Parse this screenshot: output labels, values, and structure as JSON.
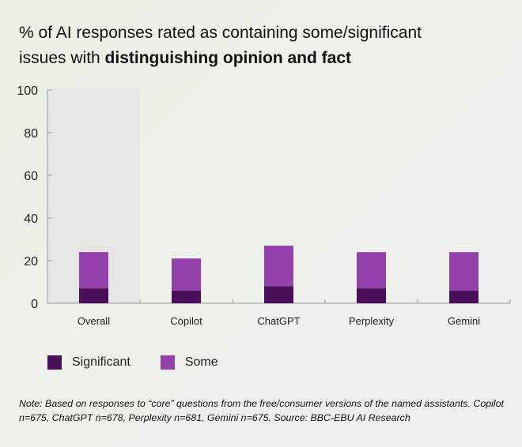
{
  "title": {
    "line1": "% of AI responses rated as containing some/significant",
    "line2_plain": "issues with ",
    "line2_bold": "distinguishing opinion and fact"
  },
  "colors": {
    "significant": "#4b0f5a",
    "some": "#9440ad",
    "highlight": "#e6e6e4",
    "axis": "#999999"
  },
  "chart_data": {
    "type": "bar",
    "stacked": true,
    "categories": [
      "Overall",
      "Copilot",
      "ChatGPT",
      "Perplexity",
      "Gemini"
    ],
    "series": [
      {
        "name": "Significant",
        "values": [
          7,
          6,
          8,
          7,
          6
        ]
      },
      {
        "name": "Some",
        "values": [
          17,
          15,
          19,
          17,
          18
        ]
      }
    ],
    "ylim": [
      0,
      100
    ],
    "yticks": [
      0,
      20,
      40,
      60,
      80,
      100
    ],
    "highlight_category": "Overall",
    "xlabel": "",
    "ylabel": ""
  },
  "legend": [
    {
      "label": "Significant"
    },
    {
      "label": "Some"
    }
  ],
  "note": "Note: Based on responses to “core” questions from the free/consumer versions of the named assistants. Copilot n=675, ChatGPT n=678, Perplexity n=681, Gemini n=675. Source: BBC-EBU AI Research"
}
